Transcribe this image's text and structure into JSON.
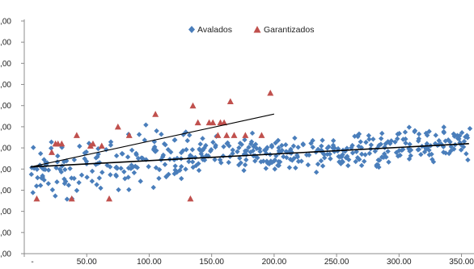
{
  "chart_data": {
    "type": "scatter",
    "legend_position": "top-center",
    "grid": false,
    "x_range": [
      0,
      360
    ],
    "y_range": [
      0,
      11
    ],
    "x_ticks": [
      "-",
      "50.00",
      "100.00",
      "150.00",
      "200.00",
      "250.00",
      "300.00",
      "350.00"
    ],
    "x_tick_values": [
      0,
      50,
      100,
      150,
      200,
      250,
      300,
      350
    ],
    "y_ticks": [
      ",00",
      ",00",
      ",00",
      ",00",
      ",00",
      ",00",
      ",00",
      ",00",
      ",00",
      ",00",
      ",00",
      ",00"
    ],
    "series": [
      {
        "name": "Avalados",
        "marker": "diamond",
        "color": "#4a7ebb",
        "trendline": [
          [
            5,
            4.1
          ],
          [
            356,
            5.2
          ]
        ],
        "seed": 20240607,
        "count": 470
      },
      {
        "name": "Garantizados",
        "marker": "triangle",
        "color": "#c0504d",
        "trendline": [
          [
            5,
            4.1
          ],
          [
            200,
            6.6
          ]
        ],
        "points": [
          [
            10,
            2.6
          ],
          [
            22,
            4.8
          ],
          [
            25,
            5.2
          ],
          [
            27,
            5.2
          ],
          [
            30,
            5.2
          ],
          [
            38,
            2.6
          ],
          [
            42,
            5.6
          ],
          [
            53,
            5.1
          ],
          [
            55,
            5.2
          ],
          [
            62,
            5.1
          ],
          [
            68,
            2.6
          ],
          [
            75,
            6.0
          ],
          [
            84,
            5.6
          ],
          [
            105,
            6.6
          ],
          [
            133,
            2.6
          ],
          [
            135,
            7.0
          ],
          [
            139,
            6.2
          ],
          [
            148,
            6.2
          ],
          [
            151,
            6.2
          ],
          [
            155,
            5.6
          ],
          [
            157,
            6.2
          ],
          [
            160,
            6.2
          ],
          [
            162,
            5.6
          ],
          [
            165,
            7.2
          ],
          [
            168,
            5.6
          ],
          [
            177,
            5.6
          ],
          [
            190,
            5.6
          ],
          [
            197,
            7.6
          ]
        ]
      }
    ]
  }
}
